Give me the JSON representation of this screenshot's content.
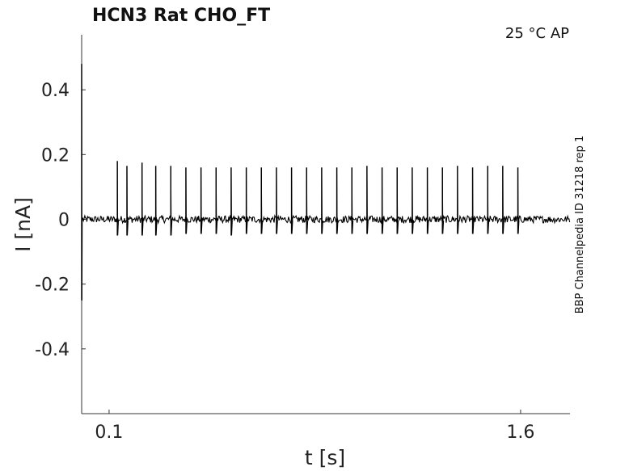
{
  "chart_data": {
    "type": "line",
    "title": "HCN3  Rat  CHO_FT",
    "annotation": "25 °C  AP",
    "side_label": "BBP Channelpedia ID 31218 rep 1",
    "xlabel": "t [s]",
    "ylabel": "I [nA]",
    "xlim": [
      0.0,
      1.78
    ],
    "ylim": [
      -0.6,
      0.57
    ],
    "x_ticks": [
      {
        "value": 0.1,
        "label": "0.1"
      },
      {
        "value": 1.6,
        "label": "1.6"
      }
    ],
    "y_ticks": [
      {
        "value": 0.4,
        "label": "0.4"
      },
      {
        "value": 0.2,
        "label": "0.2"
      },
      {
        "value": 0.0,
        "label": "0"
      },
      {
        "value": -0.2,
        "label": "-0.2"
      },
      {
        "value": -0.4,
        "label": "-0.4"
      }
    ],
    "grid": false,
    "line_color": "#000000",
    "series": [
      {
        "baseline_nA": 0.0,
        "noise_amplitude_nA": 0.01,
        "transient": {
          "t": 0.0,
          "peak": 0.48,
          "trough": -0.25
        },
        "spikes": [
          {
            "t": 0.13,
            "peak": 0.18,
            "undershoot": -0.05
          },
          {
            "t": 0.165,
            "peak": 0.165,
            "undershoot": -0.05
          },
          {
            "t": 0.22,
            "peak": 0.175,
            "undershoot": -0.05
          },
          {
            "t": 0.27,
            "peak": 0.165,
            "undershoot": -0.05
          },
          {
            "t": 0.325,
            "peak": 0.165,
            "undershoot": -0.05
          },
          {
            "t": 0.38,
            "peak": 0.16,
            "undershoot": -0.045
          },
          {
            "t": 0.435,
            "peak": 0.16,
            "undershoot": -0.045
          },
          {
            "t": 0.49,
            "peak": 0.16,
            "undershoot": -0.045
          },
          {
            "t": 0.545,
            "peak": 0.16,
            "undershoot": -0.05
          },
          {
            "t": 0.6,
            "peak": 0.16,
            "undershoot": -0.045
          },
          {
            "t": 0.655,
            "peak": 0.16,
            "undershoot": -0.045
          },
          {
            "t": 0.71,
            "peak": 0.16,
            "undershoot": -0.045
          },
          {
            "t": 0.765,
            "peak": 0.16,
            "undershoot": -0.045
          },
          {
            "t": 0.82,
            "peak": 0.16,
            "undershoot": -0.045
          },
          {
            "t": 0.875,
            "peak": 0.16,
            "undershoot": -0.045
          },
          {
            "t": 0.93,
            "peak": 0.16,
            "undershoot": -0.045
          },
          {
            "t": 0.985,
            "peak": 0.16,
            "undershoot": -0.045
          },
          {
            "t": 1.04,
            "peak": 0.165,
            "undershoot": -0.045
          },
          {
            "t": 1.095,
            "peak": 0.16,
            "undershoot": -0.045
          },
          {
            "t": 1.15,
            "peak": 0.16,
            "undershoot": -0.045
          },
          {
            "t": 1.205,
            "peak": 0.16,
            "undershoot": -0.045
          },
          {
            "t": 1.26,
            "peak": 0.16,
            "undershoot": -0.045
          },
          {
            "t": 1.315,
            "peak": 0.16,
            "undershoot": -0.045
          },
          {
            "t": 1.37,
            "peak": 0.165,
            "undershoot": -0.045
          },
          {
            "t": 1.425,
            "peak": 0.16,
            "undershoot": -0.045
          },
          {
            "t": 1.48,
            "peak": 0.165,
            "undershoot": -0.045
          },
          {
            "t": 1.535,
            "peak": 0.165,
            "undershoot": -0.045
          },
          {
            "t": 1.59,
            "peak": 0.16,
            "undershoot": -0.045
          }
        ]
      }
    ]
  }
}
